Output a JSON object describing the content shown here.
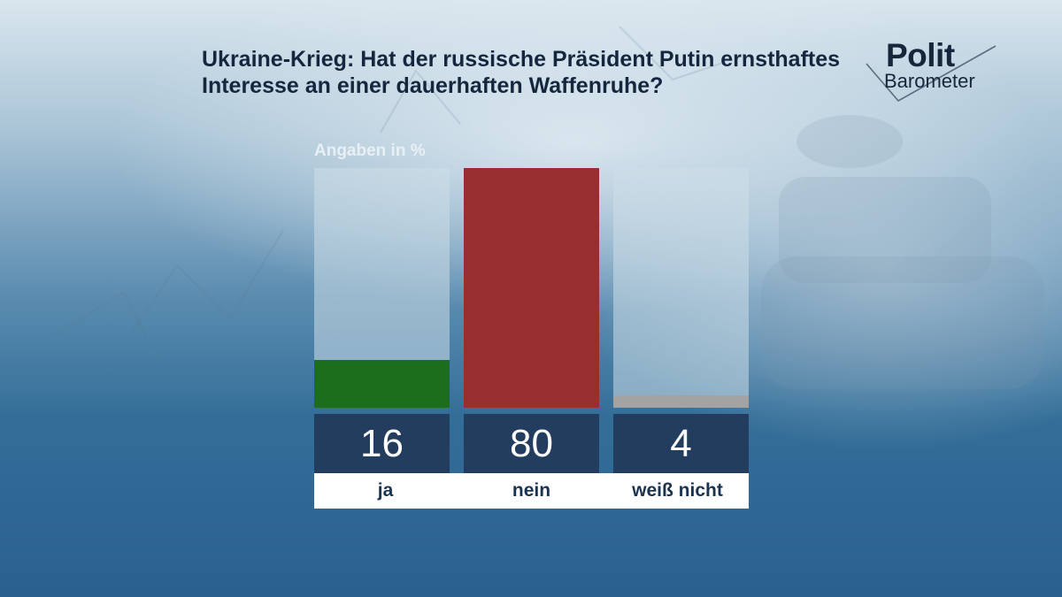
{
  "header": {
    "title": "Ukraine-Krieg: Hat der russische Präsident Putin ernsthaftes Interesse an einer dauerhaften Waffenruhe?",
    "subtitle": "Angaben in %"
  },
  "logo": {
    "line1": "Polit",
    "line2": "Barometer"
  },
  "chart_data": {
    "type": "bar",
    "title": "Ukraine-Krieg: Hat der russische Präsident Putin ernsthaftes Interesse an einer dauerhaften Waffenruhe?",
    "subtitle": "Angaben in %",
    "categories": [
      "ja",
      "nein",
      "weiß nicht"
    ],
    "values": [
      16,
      80,
      4
    ],
    "value_labels": [
      "16",
      "80",
      "4"
    ],
    "colors": [
      "#1c6e1c",
      "#982e30",
      "#a3a3a3"
    ],
    "ylim": [
      0,
      80
    ],
    "xlabel": "",
    "ylabel": "",
    "grid": false,
    "legend": "none"
  }
}
